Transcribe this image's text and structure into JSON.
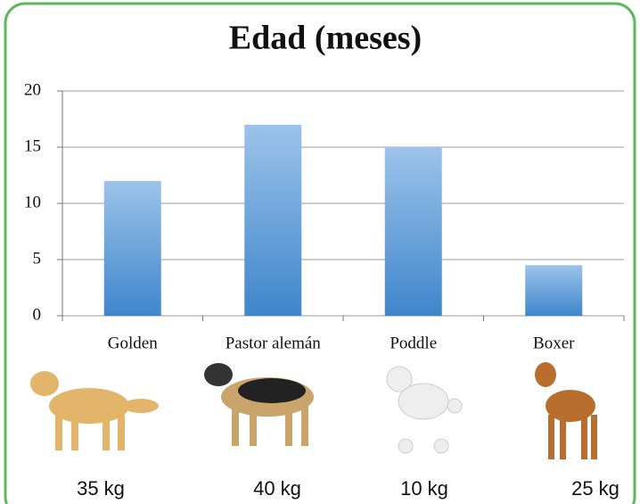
{
  "chart_data": {
    "type": "bar",
    "title": "Edad (meses)",
    "categories": [
      "Golden",
      "Pastor alemán",
      "Poddle",
      "Boxer"
    ],
    "values": [
      12,
      17,
      15,
      4.5
    ],
    "ylim": [
      0,
      20
    ],
    "yticks": [
      0,
      5,
      10,
      15,
      20
    ],
    "grid": true,
    "color": "#5b9bd5",
    "weights": [
      "35 kg",
      "40 kg",
      "10 kg",
      "25 kg"
    ]
  }
}
